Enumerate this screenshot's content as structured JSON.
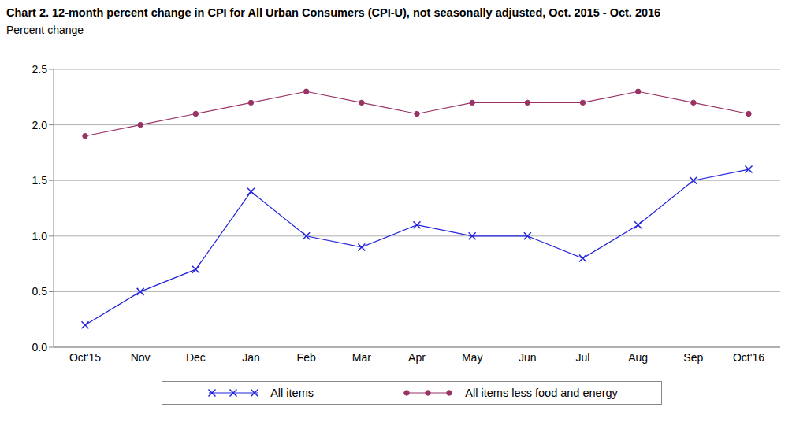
{
  "chart_data": {
    "type": "line",
    "title": "Chart 2. 12-month percent change in CPI for All Urban Consumers (CPI-U), not seasonally adjusted, Oct. 2015 - Oct. 2016",
    "y_label": "Percent change",
    "categories": [
      "Oct'15",
      "Nov",
      "Dec",
      "Jan",
      "Feb",
      "Mar",
      "Apr",
      "May",
      "Jun",
      "Jul",
      "Aug",
      "Sep",
      "Oct'16"
    ],
    "series": [
      {
        "name": "All items",
        "color": "#2222dd",
        "marker": "x",
        "values": [
          0.2,
          0.5,
          0.7,
          1.4,
          1.0,
          0.9,
          1.1,
          1.0,
          1.0,
          0.8,
          1.1,
          1.5,
          1.6
        ]
      },
      {
        "name": "All items less food and energy",
        "color": "#993366",
        "marker": "circle",
        "values": [
          1.9,
          2.0,
          2.1,
          2.2,
          2.3,
          2.2,
          2.1,
          2.2,
          2.2,
          2.2,
          2.3,
          2.2,
          2.1
        ]
      }
    ],
    "ylim": [
      0,
      2.5
    ],
    "yticks": [
      {
        "value": 0,
        "label": "0.0"
      },
      0.5,
      {
        "value": 1,
        "label": "1.0"
      },
      1.5,
      {
        "value": 2,
        "label": "2.0"
      },
      2.5
    ],
    "grid": true,
    "legend": "bottom"
  }
}
